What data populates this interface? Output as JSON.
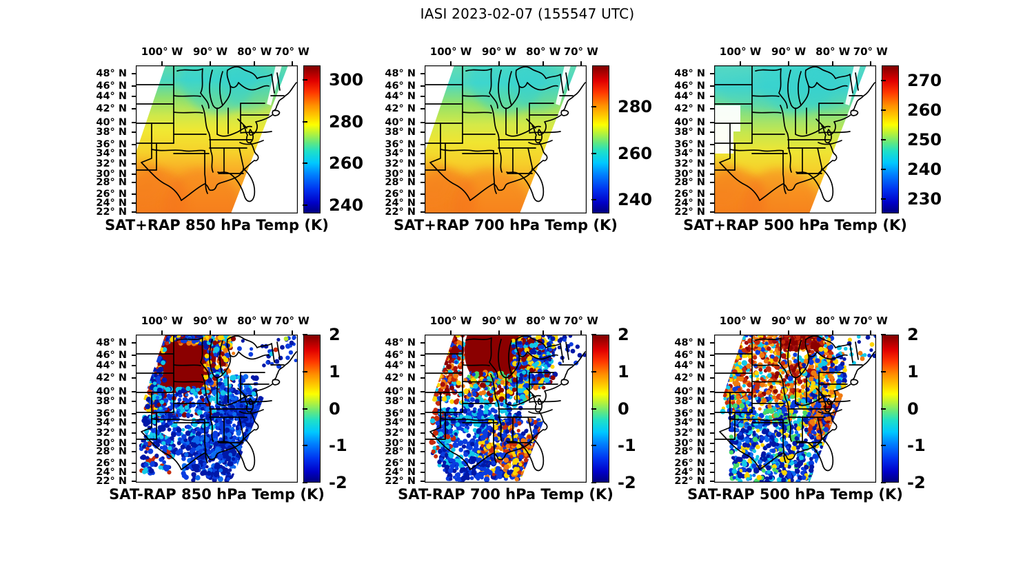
{
  "figure": {
    "title": "IASI 2023-02-07 (155547 UTC)"
  },
  "chart_data": {
    "type": "heatmap",
    "layout": "2 rows x 3 columns of map panels (eastern/central United States, satellite swath), each with its own jet colorbar",
    "x_ticks": [
      {
        "label": "100° W",
        "pos": 0.162
      },
      {
        "label": "90° W",
        "pos": 0.46
      },
      {
        "label": "80° W",
        "pos": 0.733
      },
      {
        "label": "70° W",
        "pos": 0.965
      }
    ],
    "y_ticks": [
      {
        "label": "48° N",
        "pos": 0.056
      },
      {
        "label": "46° N",
        "pos": 0.14
      },
      {
        "label": "44° N",
        "pos": 0.209
      },
      {
        "label": "42° N",
        "pos": 0.293
      },
      {
        "label": "40° N",
        "pos": 0.386
      },
      {
        "label": "38° N",
        "pos": 0.451
      },
      {
        "label": "36° N",
        "pos": 0.535
      },
      {
        "label": "34° N",
        "pos": 0.595
      },
      {
        "label": "32° N",
        "pos": 0.665
      },
      {
        "label": "30° N",
        "pos": 0.735
      },
      {
        "label": "28° N",
        "pos": 0.79
      },
      {
        "label": "26° N",
        "pos": 0.87
      },
      {
        "label": "24° N",
        "pos": 0.93
      },
      {
        "label": "22° N",
        "pos": 0.99
      }
    ],
    "panels": [
      {
        "title": "SAT+RAP 850 hPa Temp (K)",
        "row": "top",
        "colorbar": {
          "colormap": "jet",
          "units": "K",
          "vmin": 236,
          "vmax": 307,
          "ticks": [
            300,
            280,
            260,
            240
          ]
        },
        "pattern": "Smooth retrieved temperature field: cyan-green (~260-270 K) over the Great Lakes and northern states, yellow (~280 K) across the mid-latitudes, orange (~290 K) along the Gulf Coast; white no-data wedge beyond the NE swath edge"
      },
      {
        "title": "SAT+RAP 700 hPa Temp (K)",
        "row": "top",
        "colorbar": {
          "colormap": "jet",
          "units": "K",
          "vmin": 234,
          "vmax": 298,
          "ticks": [
            280,
            260,
            240
          ]
        },
        "pattern": "Green-cyan north grading through yellow to orange (~285 K) over Texas and the Gulf Coast; white no-data wedge over New England"
      },
      {
        "title": "SAT+RAP 500 hPa Temp (K)",
        "row": "top",
        "colorbar": {
          "colormap": "jet",
          "units": "K",
          "vmin": 225,
          "vmax": 275,
          "ticks": [
            270,
            260,
            250,
            240,
            230
          ]
        },
        "pattern": "Cyan-green (~245-250 K) over the upper half, yellow band mid-South, orange (~260 K) along the Gulf Coast"
      },
      {
        "title": "SAT-RAP 850 hPa Temp (K)",
        "row": "bottom",
        "colorbar": {
          "colormap": "jet",
          "units": "K",
          "vmin": -2,
          "vmax": 2,
          "ticks": [
            2,
            1,
            0,
            -1,
            -2
          ]
        },
        "pattern": "Scattered retrieval-minus-model differences: solid dark-red (> +2 K) cluster over the upper Midwest (MN/WI/IA) ringed by cyan/yellow speckle, predominantly dark-blue (< -1 K) points over the South and lower Mississippi valley, sparse blue points over New England"
      },
      {
        "title": "SAT-RAP 700 hPa Temp (K)",
        "row": "bottom",
        "colorbar": {
          "colormap": "jet",
          "units": "K",
          "vmin": -2,
          "vmax": 2,
          "ticks": [
            2,
            1,
            0,
            -1,
            -2
          ]
        },
        "pattern": "Dark-red (> +2 K) blob over MN/WI/upper Michigan with speckled warm band to its southwest, mixed cyan/yellow ring, dark-blue south with embedded orange/red clusters near the Gulf Coast"
      },
      {
        "title": "SAT-RAP 500 hPa Temp (K)",
        "row": "bottom",
        "colorbar": {
          "colormap": "jet",
          "units": "K",
          "vmin": -2,
          "vmax": 2,
          "ticks": [
            2,
            1,
            0,
            -1,
            -2
          ]
        },
        "pattern": "Mottled orange/red (+1 to +2 K) field over the northern Plains and Great Lakes with dark-red maximum near Lake Superior, mixed cyan/yellow mid-band, dense dark-blue (< -1 K) points across the South"
      }
    ]
  }
}
